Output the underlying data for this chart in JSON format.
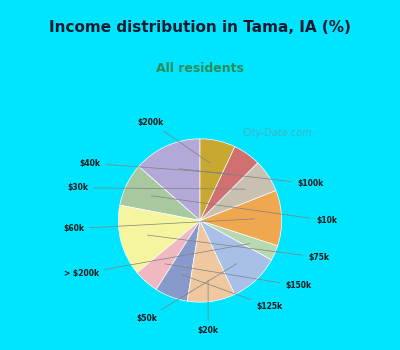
{
  "title": "Income distribution in Tama, IA (%)",
  "subtitle": "All residents",
  "labels": [
    "$100k",
    "$10k",
    "$75k",
    "$150k",
    "$125k",
    "$20k",
    "$50k",
    "> $200k",
    "$60k",
    "$30k",
    "$40k",
    "$200k"
  ],
  "sizes": [
    13.5,
    8.5,
    14.0,
    5.0,
    6.5,
    9.5,
    10.0,
    3.0,
    11.0,
    6.5,
    5.5,
    7.0
  ],
  "colors": [
    "#b3a8d8",
    "#a8c8a0",
    "#f5f5a0",
    "#f0b8c0",
    "#8899cc",
    "#f0c8a0",
    "#a8c0e8",
    "#b8d8b0",
    "#f0a850",
    "#c8c0b0",
    "#d07070",
    "#c8a830"
  ],
  "background_top": "#00e5ff",
  "background_chart": "#e8f5e9",
  "title_color": "#1a1a2e",
  "subtitle_color": "#2e8b57",
  "startangle": 90,
  "watermark": "City-Data.com"
}
